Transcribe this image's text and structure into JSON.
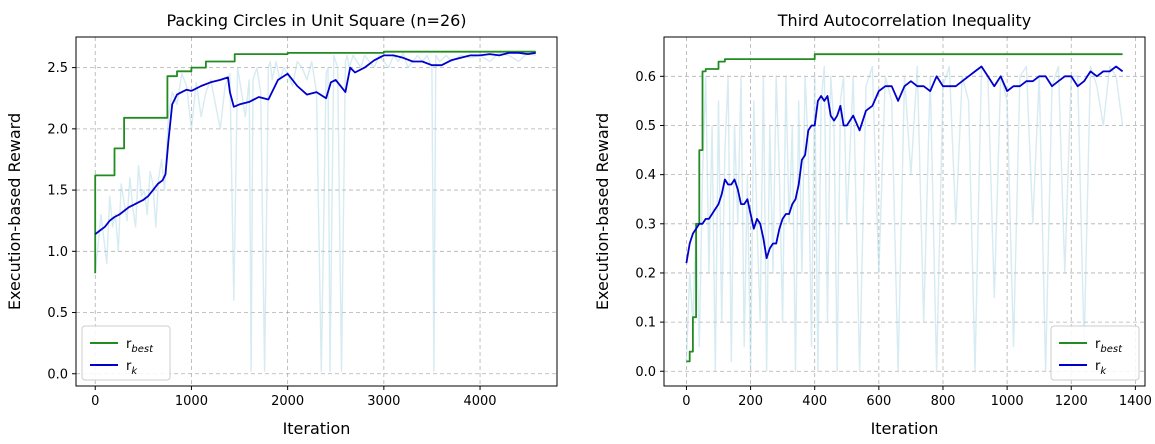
{
  "chart_data": [
    {
      "type": "line",
      "title": "Packing Circles in Unit Square (n=26)",
      "xlabel": "Iteration",
      "ylabel": "Execution-based Reward",
      "xlim": [
        -200,
        4800
      ],
      "ylim": [
        -0.1,
        2.75
      ],
      "xticks": [
        0,
        1000,
        2000,
        3000,
        4000
      ],
      "yticks": [
        0.0,
        0.5,
        1.0,
        1.5,
        2.0,
        2.5
      ],
      "ytick_decimals": 1,
      "grid": true,
      "legend": {
        "position": "lower-left",
        "entries": [
          {
            "base": "r",
            "sub": "best",
            "color": "#228B22"
          },
          {
            "base": "r",
            "sub": "k",
            "color": "#0000CD"
          }
        ]
      },
      "series": [
        {
          "key": "raw",
          "color": "#add8e6",
          "opacity": 0.5,
          "x": [
            0,
            30,
            60,
            90,
            120,
            150,
            180,
            210,
            240,
            270,
            300,
            330,
            360,
            390,
            420,
            450,
            480,
            510,
            540,
            570,
            600,
            630,
            660,
            690,
            720,
            760,
            800,
            850,
            900,
            950,
            1000,
            1050,
            1100,
            1150,
            1200,
            1250,
            1300,
            1350,
            1400,
            1440,
            1480,
            1520,
            1560,
            1600,
            1620,
            1640,
            1680,
            1720,
            1760,
            1800,
            1820,
            1840,
            1880,
            1920,
            1960,
            2000,
            2050,
            2100,
            2150,
            2200,
            2250,
            2300,
            2350,
            2400,
            2420,
            2440,
            2480,
            2520,
            2560,
            2600,
            2620,
            2640,
            2680,
            2720,
            2760,
            2800,
            2850,
            2900,
            2950,
            3000,
            3050,
            3100,
            3150,
            3200,
            3250,
            3300,
            3350,
            3400,
            3450,
            3500,
            3520,
            3540,
            3580,
            3650,
            3700,
            3800,
            3900,
            4000,
            4100,
            4200,
            4300,
            4400,
            4500,
            4580
          ],
          "y": [
            0.82,
            1.05,
            1.3,
            1.1,
            0.9,
            1.45,
            1.2,
            1.3,
            1.0,
            1.55,
            1.4,
            1.25,
            1.6,
            1.35,
            1.2,
            1.7,
            1.45,
            1.5,
            1.3,
            1.65,
            1.55,
            1.2,
            1.6,
            1.75,
            1.5,
            2.1,
            2.3,
            2.2,
            2.45,
            2.35,
            2.0,
            2.38,
            2.1,
            2.3,
            2.4,
            2.2,
            2.0,
            2.35,
            2.45,
            0.6,
            2.5,
            2.3,
            2.1,
            2.4,
            0.02,
            2.4,
            2.5,
            2.3,
            0.02,
            2.5,
            2.55,
            2.4,
            2.55,
            2.4,
            2.5,
            2.45,
            2.35,
            2.55,
            2.5,
            2.4,
            2.55,
            2.3,
            0.02,
            2.45,
            2.5,
            0.02,
            2.6,
            2.5,
            0.02,
            2.55,
            2.6,
            2.5,
            2.6,
            2.55,
            2.5,
            2.6,
            2.55,
            2.5,
            2.6,
            2.55,
            2.5,
            2.6,
            2.55,
            2.62,
            2.5,
            2.55,
            2.6,
            2.55,
            2.6,
            2.5,
            0.02,
            2.6,
            2.55,
            2.6,
            2.55,
            2.6,
            2.58,
            2.6,
            2.55,
            2.62,
            2.6,
            2.55,
            2.62,
            2.6
          ]
        },
        {
          "key": "r_best",
          "name": "r_best",
          "color": "#228B22",
          "x": [
            0,
            0,
            20,
            20,
            200,
            200,
            300,
            300,
            750,
            750,
            850,
            850,
            1000,
            1000,
            1150,
            1150,
            1450,
            1450,
            2000,
            2000,
            3000,
            3000,
            4580
          ],
          "y": [
            0.82,
            1.62,
            1.62,
            1.62,
            1.62,
            1.84,
            1.84,
            2.09,
            2.09,
            2.43,
            2.43,
            2.47,
            2.47,
            2.5,
            2.5,
            2.55,
            2.55,
            2.61,
            2.61,
            2.62,
            2.62,
            2.63,
            2.63
          ]
        },
        {
          "key": "r_k",
          "name": "r_k",
          "color": "#0000CD",
          "x": [
            0,
            50,
            100,
            150,
            200,
            250,
            300,
            350,
            400,
            450,
            500,
            550,
            600,
            650,
            700,
            730,
            760,
            800,
            850,
            900,
            950,
            1000,
            1100,
            1200,
            1300,
            1380,
            1400,
            1440,
            1500,
            1600,
            1700,
            1750,
            1800,
            1900,
            2000,
            2100,
            2200,
            2300,
            2400,
            2450,
            2500,
            2600,
            2650,
            2700,
            2800,
            2900,
            3000,
            3100,
            3200,
            3300,
            3400,
            3500,
            3600,
            3700,
            3800,
            3900,
            4000,
            4100,
            4200,
            4300,
            4400,
            4500,
            4580
          ],
          "y": [
            1.14,
            1.17,
            1.2,
            1.25,
            1.28,
            1.3,
            1.33,
            1.36,
            1.38,
            1.4,
            1.42,
            1.45,
            1.5,
            1.55,
            1.58,
            1.63,
            1.9,
            2.2,
            2.28,
            2.3,
            2.32,
            2.31,
            2.35,
            2.38,
            2.4,
            2.42,
            2.3,
            2.18,
            2.2,
            2.22,
            2.26,
            2.25,
            2.24,
            2.4,
            2.45,
            2.35,
            2.28,
            2.3,
            2.25,
            2.38,
            2.4,
            2.3,
            2.5,
            2.46,
            2.5,
            2.56,
            2.6,
            2.6,
            2.58,
            2.55,
            2.55,
            2.52,
            2.52,
            2.56,
            2.58,
            2.6,
            2.6,
            2.61,
            2.6,
            2.62,
            2.62,
            2.61,
            2.62
          ]
        }
      ]
    },
    {
      "type": "line",
      "title": "Third Autocorrelation Inequality",
      "xlabel": "Iteration",
      "ylabel": "Execution-based Reward",
      "xlim": [
        -70,
        1430
      ],
      "ylim": [
        -0.03,
        0.68
      ],
      "xticks": [
        0,
        200,
        400,
        600,
        800,
        1000,
        1200,
        1400
      ],
      "yticks": [
        0.0,
        0.1,
        0.2,
        0.3,
        0.4,
        0.5,
        0.6
      ],
      "ytick_decimals": 1,
      "grid": true,
      "legend": {
        "position": "lower-right",
        "entries": [
          {
            "base": "r",
            "sub": "best",
            "color": "#228B22"
          },
          {
            "base": "r",
            "sub": "k",
            "color": "#0000CD"
          }
        ]
      },
      "series": [
        {
          "key": "raw",
          "color": "#add8e6",
          "opacity": 0.5,
          "x": [
            0,
            10,
            20,
            30,
            40,
            50,
            60,
            70,
            80,
            90,
            100,
            110,
            120,
            130,
            140,
            150,
            160,
            170,
            180,
            190,
            200,
            210,
            220,
            230,
            240,
            250,
            260,
            270,
            280,
            290,
            300,
            310,
            320,
            330,
            340,
            350,
            360,
            370,
            380,
            390,
            400,
            410,
            420,
            430,
            440,
            450,
            460,
            470,
            480,
            490,
            500,
            520,
            540,
            560,
            580,
            600,
            620,
            640,
            660,
            680,
            700,
            720,
            740,
            760,
            780,
            800,
            820,
            840,
            860,
            880,
            900,
            920,
            940,
            960,
            980,
            1000,
            1020,
            1040,
            1060,
            1080,
            1100,
            1120,
            1140,
            1160,
            1180,
            1200,
            1220,
            1240,
            1260,
            1280,
            1300,
            1320,
            1340,
            1360
          ],
          "y": [
            0.02,
            0.2,
            0.1,
            0.3,
            0.05,
            0.4,
            0.6,
            0.2,
            0.5,
            0.0,
            0.55,
            0.1,
            0.45,
            0.6,
            0.02,
            0.5,
            0.3,
            0.6,
            0.05,
            0.4,
            0.0,
            0.55,
            0.3,
            0.1,
            0.6,
            0.0,
            0.5,
            0.2,
            0.6,
            0.4,
            0.1,
            0.6,
            0.3,
            0.5,
            0.0,
            0.55,
            0.2,
            0.6,
            0.45,
            0.05,
            0.6,
            0.0,
            0.55,
            0.62,
            0.1,
            0.6,
            0.5,
            0.0,
            0.55,
            0.6,
            0.3,
            0.6,
            0.0,
            0.58,
            0.62,
            0.2,
            0.6,
            0.55,
            0.0,
            0.6,
            0.4,
            0.62,
            0.1,
            0.6,
            0.0,
            0.58,
            0.62,
            0.3,
            0.6,
            0.55,
            0.0,
            0.62,
            0.6,
            0.15,
            0.6,
            0.55,
            0.05,
            0.6,
            0.62,
            0.3,
            0.6,
            0.0,
            0.58,
            0.62,
            0.2,
            0.6,
            0.6,
            0.05,
            0.62,
            0.58,
            0.5,
            0.62,
            0.6,
            0.5
          ]
        },
        {
          "key": "r_best",
          "name": "r_best",
          "color": "#228B22",
          "x": [
            0,
            10,
            10,
            20,
            20,
            30,
            30,
            40,
            40,
            50,
            50,
            60,
            60,
            100,
            100,
            120,
            120,
            400,
            400,
            1360
          ],
          "y": [
            0.02,
            0.02,
            0.04,
            0.04,
            0.11,
            0.11,
            0.3,
            0.3,
            0.45,
            0.45,
            0.61,
            0.61,
            0.615,
            0.615,
            0.63,
            0.63,
            0.635,
            0.635,
            0.645,
            0.645
          ]
        },
        {
          "key": "r_k",
          "name": "r_k",
          "color": "#0000CD",
          "x": [
            0,
            10,
            20,
            30,
            40,
            50,
            60,
            70,
            80,
            90,
            100,
            110,
            120,
            130,
            140,
            150,
            160,
            170,
            180,
            190,
            200,
            210,
            220,
            230,
            240,
            250,
            260,
            270,
            280,
            290,
            300,
            310,
            320,
            330,
            340,
            350,
            360,
            370,
            380,
            390,
            400,
            410,
            420,
            430,
            440,
            450,
            460,
            470,
            480,
            490,
            500,
            520,
            540,
            560,
            580,
            600,
            620,
            640,
            660,
            680,
            700,
            720,
            740,
            760,
            780,
            800,
            820,
            840,
            860,
            880,
            900,
            920,
            940,
            960,
            980,
            1000,
            1020,
            1040,
            1060,
            1080,
            1100,
            1120,
            1140,
            1160,
            1180,
            1200,
            1220,
            1240,
            1260,
            1280,
            1300,
            1320,
            1340,
            1360
          ],
          "y": [
            0.22,
            0.26,
            0.28,
            0.29,
            0.3,
            0.3,
            0.31,
            0.31,
            0.32,
            0.33,
            0.34,
            0.36,
            0.39,
            0.38,
            0.38,
            0.39,
            0.37,
            0.34,
            0.34,
            0.35,
            0.32,
            0.29,
            0.31,
            0.3,
            0.27,
            0.23,
            0.25,
            0.26,
            0.26,
            0.29,
            0.31,
            0.32,
            0.32,
            0.34,
            0.35,
            0.38,
            0.43,
            0.44,
            0.49,
            0.5,
            0.5,
            0.55,
            0.56,
            0.55,
            0.56,
            0.52,
            0.51,
            0.52,
            0.54,
            0.5,
            0.5,
            0.52,
            0.49,
            0.53,
            0.54,
            0.57,
            0.58,
            0.58,
            0.55,
            0.58,
            0.59,
            0.58,
            0.58,
            0.57,
            0.6,
            0.58,
            0.58,
            0.58,
            0.59,
            0.6,
            0.61,
            0.62,
            0.6,
            0.58,
            0.6,
            0.57,
            0.58,
            0.58,
            0.59,
            0.59,
            0.6,
            0.6,
            0.58,
            0.59,
            0.6,
            0.6,
            0.58,
            0.59,
            0.61,
            0.6,
            0.61,
            0.61,
            0.62,
            0.61
          ]
        }
      ]
    }
  ]
}
